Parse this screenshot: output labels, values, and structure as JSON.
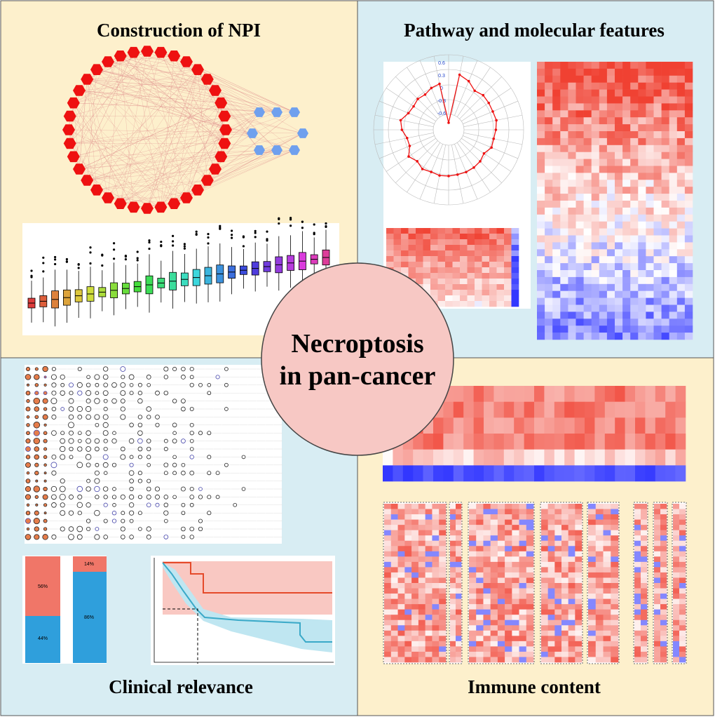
{
  "panels": [
    {
      "title": "Construction of NPI"
    },
    {
      "title": "Pathway and molecular features"
    },
    {
      "title": "Clinical relevance"
    },
    {
      "title": "Immune content"
    }
  ],
  "center": {
    "lines": [
      "Necroptosis",
      "in pan-cancer"
    ]
  },
  "stacked_bars": {
    "labels": [
      "56%",
      "44%",
      "14%",
      "86%"
    ]
  },
  "radar": {
    "labels": [
      "0.6",
      "0.3",
      "0",
      "-0.3",
      "-0.6"
    ]
  }
}
